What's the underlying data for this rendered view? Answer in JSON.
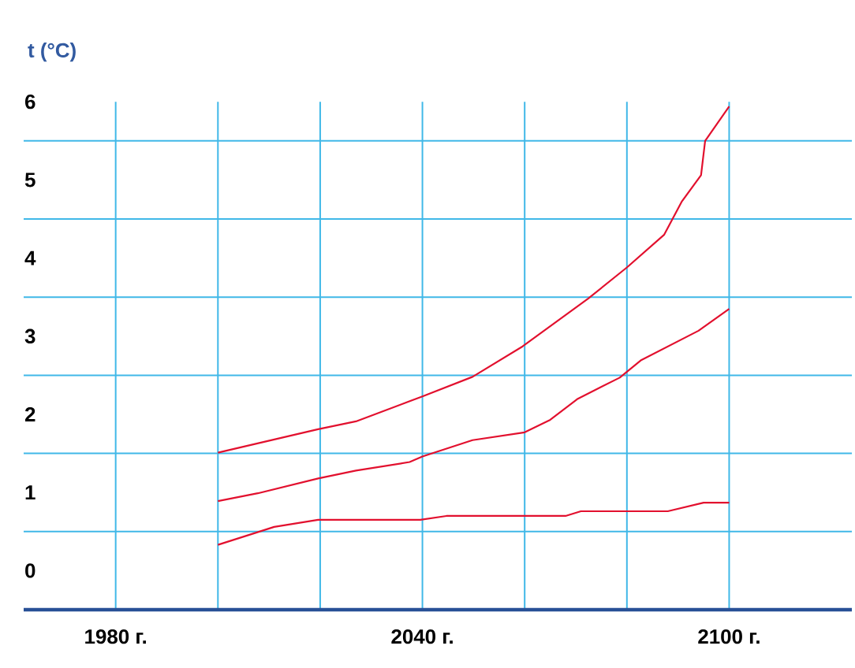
{
  "chart_data": {
    "type": "line",
    "ylabel": "t (°C)",
    "xlim": [
      1962,
      2124
    ],
    "ylim": [
      -0.5,
      6
    ],
    "xticks": [
      {
        "value": 1980,
        "label": "1980 г."
      },
      {
        "value": 2000,
        "label": null
      },
      {
        "value": 2020,
        "label": null
      },
      {
        "value": 2040,
        "label": "2040 г."
      },
      {
        "value": 2060,
        "label": null
      },
      {
        "value": 2080,
        "label": null
      },
      {
        "value": 2100,
        "label": "2100 г."
      }
    ],
    "yticks": [
      0,
      1,
      2,
      3,
      4,
      5,
      6,
      {
        "value": 0.5,
        "label": null
      },
      {
        "value": 1.5,
        "label": null
      },
      {
        "value": 2.5,
        "label": null
      },
      {
        "value": 3.5,
        "label": null
      },
      {
        "value": 4.5,
        "label": null
      },
      {
        "value": 5.5,
        "label": null
      }
    ],
    "grid": true,
    "marker": "none",
    "line_style": "solid",
    "series": [
      {
        "color": "#e2102e",
        "x": [
          2000,
          2011,
          2019.6,
          2039.6,
          2044.7,
          2068,
          2071,
          2088,
          2095,
          2100
        ],
        "values": [
          0.33,
          0.56,
          0.65,
          0.65,
          0.7,
          0.7,
          0.76,
          0.76,
          0.87,
          0.87
        ]
      },
      {
        "color": "#e2102e",
        "x": [
          2000,
          2007.8,
          2019.6,
          2027,
          2037.5,
          2040,
          2049.8,
          2060,
          2065,
          2070.4,
          2078.6,
          2082.7,
          2094,
          2100
        ],
        "values": [
          0.89,
          0.99,
          1.18,
          1.28,
          1.39,
          1.46,
          1.67,
          1.77,
          1.93,
          2.2,
          2.47,
          2.69,
          3.07,
          3.35
        ]
      },
      {
        "color": "#e2102e",
        "x": [
          2000,
          2019.6,
          2027,
          2040,
          2049.8,
          2059.6,
          2072.4,
          2080,
          2087.3,
          2090.7,
          2094.5,
          2095.3,
          2100
        ],
        "values": [
          1.51,
          1.81,
          1.91,
          2.23,
          2.48,
          2.87,
          3.48,
          3.88,
          4.3,
          4.72,
          5.06,
          5.5,
          5.94
        ]
      }
    ]
  }
}
